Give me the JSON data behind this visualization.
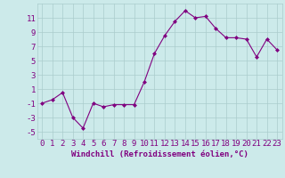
{
  "x": [
    0,
    1,
    2,
    3,
    4,
    5,
    6,
    7,
    8,
    9,
    10,
    11,
    12,
    13,
    14,
    15,
    16,
    17,
    18,
    19,
    20,
    21,
    22,
    23
  ],
  "y": [
    -1.0,
    -0.5,
    0.5,
    -3.0,
    -4.5,
    -1.0,
    -1.5,
    -1.2,
    -1.2,
    -1.2,
    2.0,
    6.0,
    8.5,
    10.5,
    12.0,
    11.0,
    11.2,
    9.5,
    8.2,
    8.2,
    8.0,
    5.5,
    8.0,
    6.5
  ],
  "line_color": "#800080",
  "marker": "D",
  "marker_size": 2,
  "bg_color": "#cceaea",
  "grid_color": "#aacccc",
  "xlabel": "Windchill (Refroidissement éolien,°C)",
  "ylabel": "",
  "ylim": [
    -6,
    13
  ],
  "xlim": [
    -0.5,
    23.5
  ],
  "yticks": [
    -5,
    -3,
    -1,
    1,
    3,
    5,
    7,
    9,
    11
  ],
  "xticks": [
    0,
    1,
    2,
    3,
    4,
    5,
    6,
    7,
    8,
    9,
    10,
    11,
    12,
    13,
    14,
    15,
    16,
    17,
    18,
    19,
    20,
    21,
    22,
    23
  ],
  "tick_color": "#800080",
  "label_color": "#800080",
  "font_size": 6.5
}
